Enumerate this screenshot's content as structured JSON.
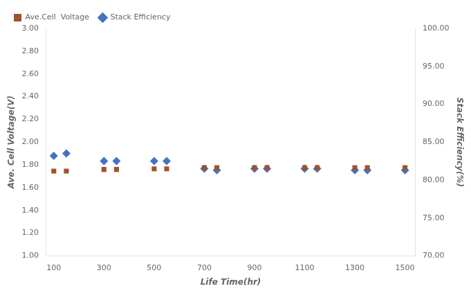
{
  "chart_data": {
    "type": "scatter",
    "xlabel": "Life Time(hr)",
    "ylabel": "Ave. Cell Voltage(V)",
    "y2label": "Stack Efficiency(%)",
    "x": [
      100,
      150,
      300,
      350,
      500,
      550,
      700,
      750,
      900,
      950,
      1100,
      1150,
      1300,
      1350,
      1500
    ],
    "series": [
      {
        "name": "Ave.Cell  Voltage",
        "color": "#A0522D",
        "marker": "square",
        "axis": "y",
        "values": [
          1.745,
          1.745,
          1.76,
          1.76,
          1.765,
          1.765,
          1.775,
          1.775,
          1.775,
          1.775,
          1.775,
          1.775,
          1.775,
          1.775,
          1.775
        ]
      },
      {
        "name": "Stack Efficiency",
        "color": "#4472C4",
        "marker": "diamond",
        "axis": "y2",
        "values": [
          83.2,
          83.5,
          82.5,
          82.5,
          82.5,
          82.5,
          81.5,
          81.3,
          81.5,
          81.5,
          81.5,
          81.5,
          81.3,
          81.3,
          81.3
        ]
      }
    ],
    "xlim": [
      70,
      1540
    ],
    "xticks": [
      100,
      300,
      500,
      700,
      900,
      1100,
      1300,
      1500
    ],
    "ylim": [
      1.0,
      3.0
    ],
    "yticks": [
      {
        "value": 1.0,
        "label": "1.00"
      },
      {
        "value": 1.2,
        "label": "1.20"
      },
      {
        "value": 1.4,
        "label": "1.40"
      },
      {
        "value": 1.6,
        "label": "1.60"
      },
      {
        "value": 1.8,
        "label": "1.80"
      },
      {
        "value": 2.0,
        "label": "2.00"
      },
      {
        "value": 2.2,
        "label": "2.20"
      },
      {
        "value": 2.4,
        "label": "2.40"
      },
      {
        "value": 2.6,
        "label": "2.60"
      },
      {
        "value": 2.8,
        "label": "2.80"
      },
      {
        "value": 3.0,
        "label": "3.00"
      }
    ],
    "y2lim": [
      70.0,
      100.0
    ],
    "y2ticks": [
      {
        "value": 70,
        "label": "70.00"
      },
      {
        "value": 75,
        "label": "75.00"
      },
      {
        "value": 80,
        "label": "80.00"
      },
      {
        "value": 85,
        "label": "85.00"
      },
      {
        "value": 90,
        "label": "90.00"
      },
      {
        "value": 95,
        "label": "95.00"
      },
      {
        "value": 100,
        "label": "100.00"
      }
    ],
    "grid": false,
    "legend": "upper left"
  }
}
